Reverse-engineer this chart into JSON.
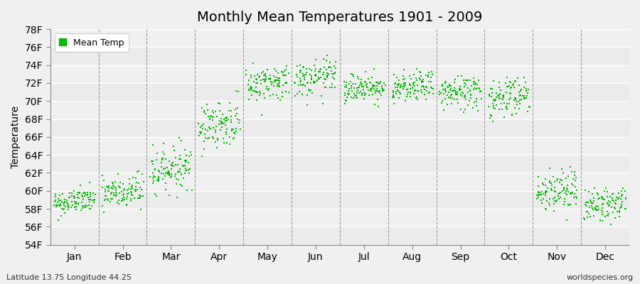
{
  "title": "Monthly Mean Temperatures 1901 - 2009",
  "ylabel": "Temperature",
  "xlabel_bottom_left": "Latitude 13.75 Longitude 44.25",
  "xlabel_bottom_right": "worldspecies.org",
  "ylim": [
    54,
    78
  ],
  "yticks": [
    54,
    56,
    58,
    60,
    62,
    64,
    66,
    68,
    70,
    72,
    74,
    76,
    78
  ],
  "ytick_labels": [
    "54F",
    "56F",
    "58F",
    "60F",
    "62F",
    "64F",
    "66F",
    "68F",
    "70F",
    "72F",
    "74F",
    "76F",
    "78F"
  ],
  "months": [
    "Jan",
    "Feb",
    "Mar",
    "Apr",
    "May",
    "Jun",
    "Jul",
    "Aug",
    "Sep",
    "Oct",
    "Nov",
    "Dec"
  ],
  "month_centers": [
    0.5,
    1.5,
    2.5,
    3.5,
    4.5,
    5.5,
    6.5,
    7.5,
    8.5,
    9.5,
    10.5,
    11.5
  ],
  "month_boundaries": [
    1.0,
    2.0,
    3.0,
    4.0,
    5.0,
    6.0,
    7.0,
    8.0,
    9.0,
    10.0,
    11.0
  ],
  "xlim": [
    0,
    12
  ],
  "dot_color": "#00BB00",
  "legend_label": "Mean Temp",
  "legend_color": "#00BB00",
  "background_color": "#F0F0F0",
  "plot_bg_color": "#F0F0F0",
  "title_fontsize": 14,
  "axis_fontsize": 10,
  "n_years": 109,
  "monthly_means": [
    58.8,
    59.8,
    62.5,
    67.5,
    72.0,
    72.5,
    71.5,
    71.5,
    71.0,
    70.5,
    60.0,
    58.5
  ],
  "monthly_stds": [
    0.7,
    1.0,
    1.2,
    1.3,
    1.0,
    1.0,
    0.8,
    0.8,
    1.0,
    1.2,
    1.2,
    0.9
  ],
  "seed": 42
}
